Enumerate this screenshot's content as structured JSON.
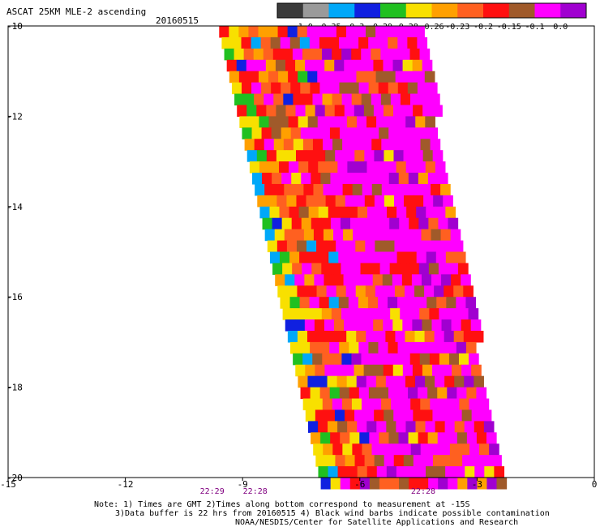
{
  "header": {
    "title": "ASCAT 25KM MLE-2 ascending",
    "date": "20160515"
  },
  "colorbar": {
    "colors": [
      "#3a3a3a",
      "#9a9a9a",
      "#00a8f8",
      "#1020e0",
      "#20c020",
      "#f8e000",
      "#ffa000",
      "#ff6020",
      "#ff1010",
      "#a05a2a",
      "#ff00ff",
      "#a000d0"
    ],
    "ticks": [
      "-1.0",
      "-0.35",
      "-0.3",
      "-0.29",
      "-0.28",
      "-0.26",
      "-0.23",
      "-0.2",
      "-0.15",
      "-0.1",
      "0.0"
    ]
  },
  "chart_data": {
    "type": "heatmap",
    "title": "ASCAT 25KM MLE-2 ascending",
    "xlim": [
      -15,
      0
    ],
    "ylim": [
      -20,
      -10
    ],
    "xticks": [
      "-15",
      "-12",
      "-9",
      "-6",
      "-3",
      "0"
    ],
    "yticks": [
      "-10",
      "-12",
      "-14",
      "-16",
      "-18",
      "-20"
    ],
    "swath": {
      "lat_top": -10,
      "lat_bottom": -20,
      "west_edge_lon": [
        -9.6,
        -7.0
      ],
      "east_edge_lon": [
        -4.5,
        -2.4
      ]
    },
    "cell_size_deg": 0.25,
    "dominant_values": {
      "west": -0.21,
      "east": -0.1
    },
    "time_labels": [
      {
        "lon": -9.8,
        "text": "22:29"
      },
      {
        "lon": -8.7,
        "text": "22:28"
      },
      {
        "lon": -4.4,
        "text": "22:28"
      }
    ]
  },
  "footer": {
    "line1": "Note: 1) Times are GMT 2)Times along bottom correspond to measurement at -15S",
    "line2": "3)Data buffer is 22 hrs from 20160515 4) Black wind barbs indicate possible contamination",
    "line3": "NOAA/NESDIS/Center for Satellite Applications and Research"
  }
}
